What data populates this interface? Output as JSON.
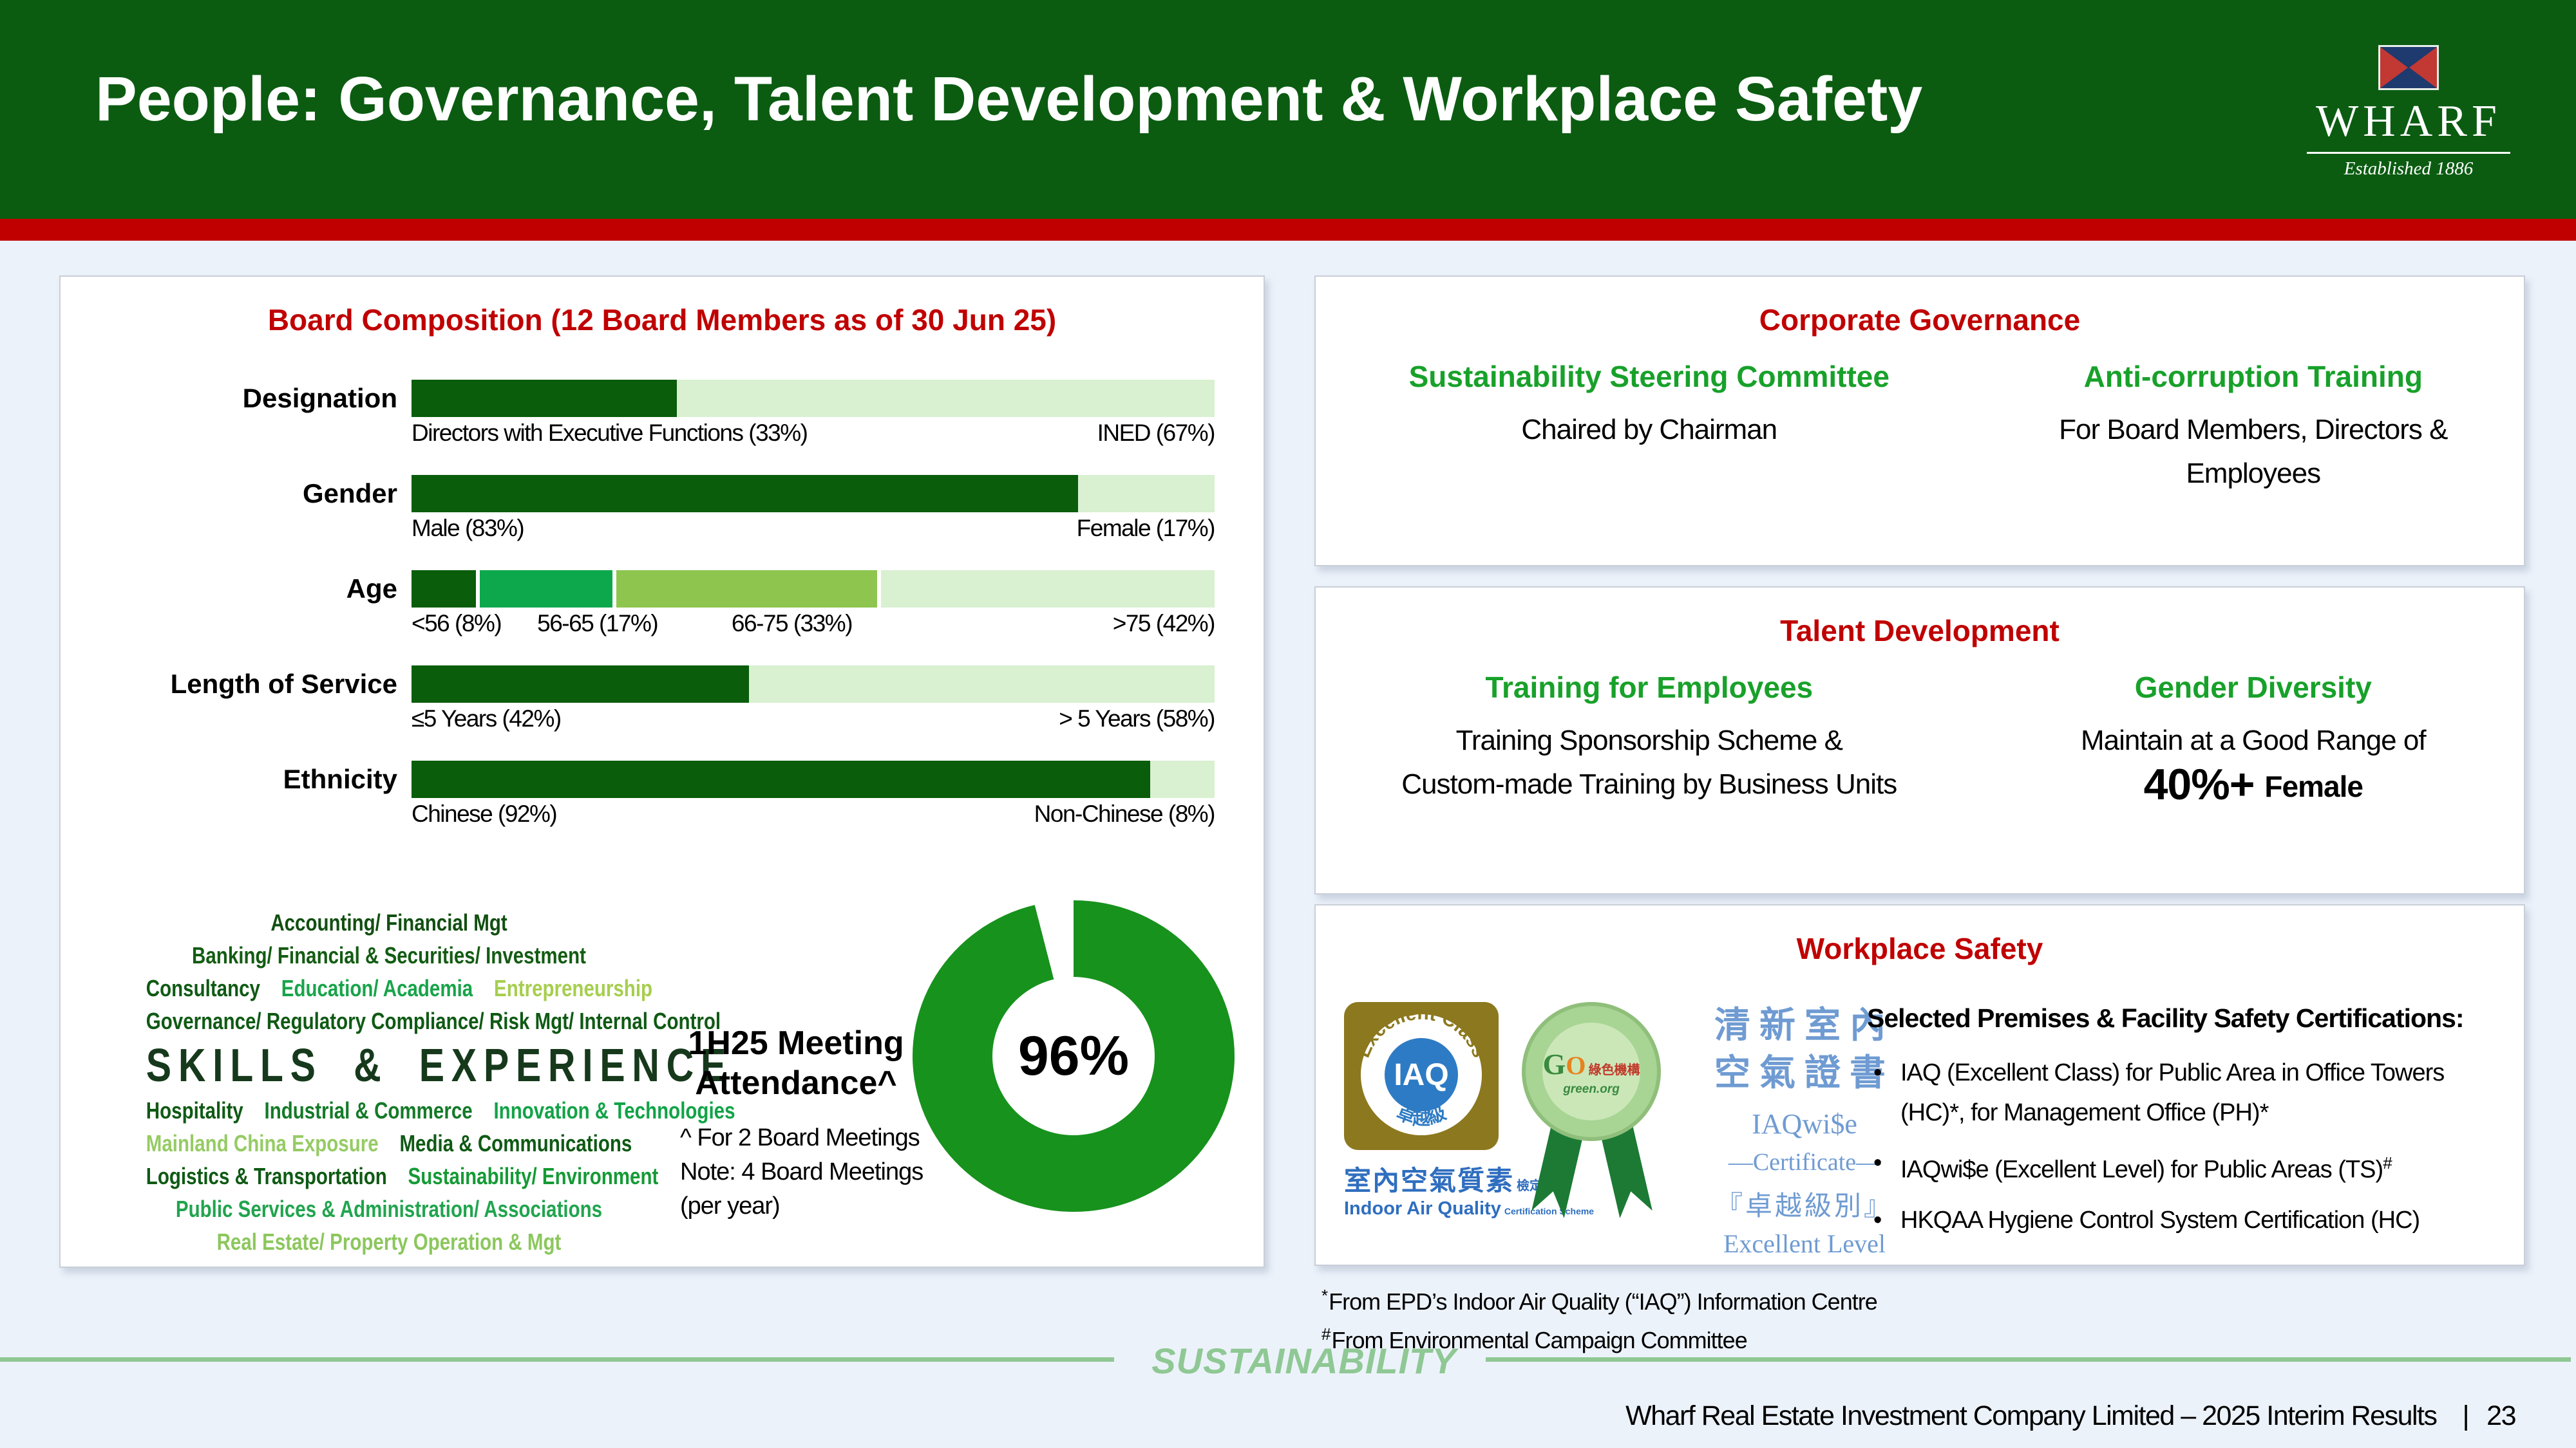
{
  "header": {
    "title": "People: Governance, Talent Development & Workplace Safety",
    "logo": {
      "brand": "WHARF",
      "established": "Established 1886"
    }
  },
  "chart_data": [
    {
      "type": "bar",
      "subtype": "horizontal-stacked-100pct",
      "title": "Board Composition (12 Board Members as of 30 Jun 25)",
      "rows": [
        {
          "category": "Designation",
          "segments": [
            {
              "label": "Directors with Executive Functions (33%)",
              "value": 33,
              "color": "#0A5D0B"
            },
            {
              "label": "INED (67%)",
              "value": 67,
              "color": "#D9F0D1"
            }
          ]
        },
        {
          "category": "Gender",
          "segments": [
            {
              "label": "Male (83%)",
              "value": 83,
              "color": "#0A5D0B"
            },
            {
              "label": "Female (17%)",
              "value": 17,
              "color": "#D9F0D1"
            }
          ]
        },
        {
          "category": "Age",
          "gaps": true,
          "segments": [
            {
              "label": "<56 (8%)",
              "value": 8,
              "color": "#0A5D0B"
            },
            {
              "label": "56-65 (17%)",
              "value": 17,
              "color": "#0DA74C"
            },
            {
              "label": "66-75 (33%)",
              "value": 33,
              "color": "#8DC54E"
            },
            {
              "label": ">75 (42%)",
              "value": 42,
              "color": "#D9F0D1"
            }
          ]
        },
        {
          "category": "Length of Service",
          "segments": [
            {
              "label": "≤5 Years (42%)",
              "value": 42,
              "color": "#0A5D0B"
            },
            {
              "label": "> 5 Years (58%)",
              "value": 58,
              "color": "#D9F0D1"
            }
          ]
        },
        {
          "category": "Ethnicity",
          "segments": [
            {
              "label": "Chinese (92%)",
              "value": 92,
              "color": "#0A5D0B"
            },
            {
              "label": "Non-Chinese (8%)",
              "value": 8,
              "color": "#D9F0D1"
            }
          ]
        }
      ]
    },
    {
      "type": "pie",
      "subtype": "donut",
      "title": "1H25 Meeting Attendance^",
      "slices": [
        {
          "label": "Attendance",
          "value": 96,
          "color": "#17921D"
        },
        {
          "label": "Remainder",
          "value": 4,
          "color": "#FFFFFF"
        }
      ],
      "center_label": "96%",
      "notes": [
        "^ For 2 Board Meetings",
        "Note: 4 Board Meetings",
        "(per year)"
      ]
    }
  ],
  "skills_cloud": {
    "lines": [
      {
        "items": [
          {
            "text": "Accounting/ Financial Mgt",
            "color": "#114F11"
          }
        ]
      },
      {
        "items": [
          {
            "text": "Banking/ Financial & Securities/ Investment",
            "color": "#135C13"
          }
        ]
      },
      {
        "items": [
          {
            "text": "Consultancy",
            "color": "#0F5A14"
          },
          {
            "text": "Education/ Academia",
            "color": "#18A44A"
          },
          {
            "text": "Entrepreneurship",
            "color": "#A6CE4E"
          }
        ]
      },
      {
        "items": [
          {
            "text": "Governance/ Regulatory Compliance/ Risk Mgt/ Internal Control",
            "color": "#0F5A14"
          }
        ]
      },
      {
        "big": true,
        "items": [
          {
            "text": "SKILLS & EXPERIENCE",
            "color": "#16391C"
          }
        ]
      },
      {
        "items": [
          {
            "text": "Hospitality",
            "color": "#0F5A14"
          },
          {
            "text": "Industrial & Commerce",
            "color": "#147A28"
          },
          {
            "text": "Innovation & Technologies",
            "color": "#12A347"
          }
        ]
      },
      {
        "items": [
          {
            "text": "Mainland China Exposure",
            "color": "#96CB64"
          },
          {
            "text": "Media & Communications",
            "color": "#0F5A14"
          }
        ]
      },
      {
        "items": [
          {
            "text": "Logistics & Transportation",
            "color": "#0F5A14"
          },
          {
            "text": "Sustainability/ Environment",
            "color": "#159A35"
          }
        ]
      },
      {
        "items": [
          {
            "text": "Public Services & Administration/ Associations",
            "color": "#21A44E"
          }
        ]
      },
      {
        "items": [
          {
            "text": "Real Estate/ Property Operation & Mgt",
            "color": "#8CC75D"
          }
        ]
      }
    ]
  },
  "panels": {
    "corporate_governance": {
      "title": "Corporate Governance",
      "columns": [
        {
          "heading": "Sustainability Steering Committee",
          "body": [
            "Chaired by Chairman"
          ]
        },
        {
          "heading": "Anti-corruption Training",
          "body": [
            "For Board Members, Directors &",
            "Employees"
          ]
        }
      ]
    },
    "talent_development": {
      "title": "Talent Development",
      "columns": [
        {
          "heading": "Training for Employees",
          "body": [
            "Training Sponsorship Scheme &",
            "Custom-made Training by Business Units"
          ]
        },
        {
          "heading": "Gender Diversity",
          "body": [
            "Maintain at a Good Range of"
          ],
          "highlight": {
            "big": "40%+",
            "rest": "Female"
          }
        }
      ]
    },
    "workplace_safety": {
      "title": "Workplace Safety",
      "badges": {
        "iaq": {
          "arc_text": "Excellent Class",
          "acronym": "IAQ",
          "class_zh": "卓越級",
          "caption_zh": "室內空氣質素",
          "caption_zh_small": "檢定計劃",
          "caption_en": "Indoor Air Quality",
          "caption_en_small": "Certification Scheme"
        },
        "seal": {
          "logo_go_g": "G",
          "logo_go_o": "O",
          "logo_zh": "綠色機構",
          "logo_org": "green.org"
        },
        "cert": {
          "line1_zh": "清新室內",
          "line2_zh": "空氣證書",
          "name": "IAQwi$e",
          "certificate": "—Certificate—",
          "level_zh": "『卓越級別』",
          "level_en": "Excellent Level"
        }
      },
      "heading": "Selected Premises & Facility Safety Certifications:",
      "bullets": [
        {
          "text": "IAQ (Excellent Class) for Public Area in Office Towers (HC)*, for Management Office (PH)*"
        },
        {
          "text": "IAQwi$e (Excellent Level) for Public Areas (TS)",
          "sup": "#"
        },
        {
          "text": "HKQAA Hygiene Control System Certification (HC)"
        }
      ]
    }
  },
  "footnotes": [
    {
      "sup": "*",
      "text": "From EPD’s Indoor Air Quality (“IAQ”) Information Centre"
    },
    {
      "sup": "#",
      "text": "From Environmental Campaign Committee"
    }
  ],
  "sustainability_band": {
    "label": "SUSTAINABILITY"
  },
  "footer": {
    "text": "Wharf Real Estate Investment Company Limited – 2025 Interim Results",
    "divider": "|",
    "page": "23"
  }
}
